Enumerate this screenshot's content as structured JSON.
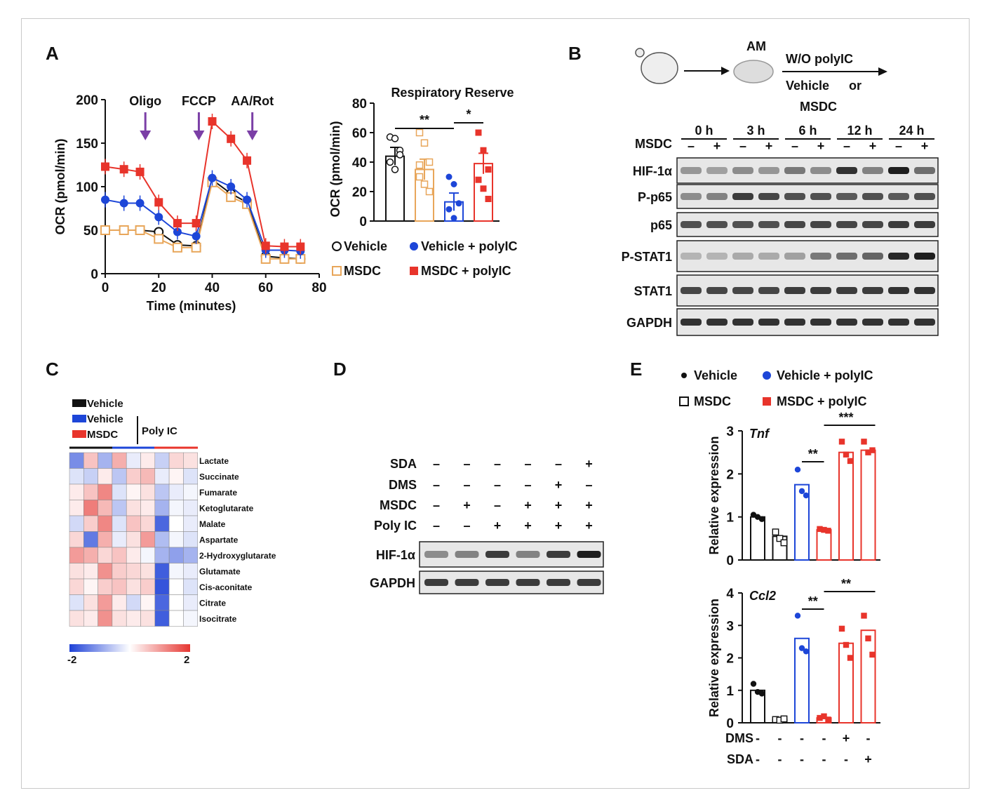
{
  "panels": {
    "A": "A",
    "B": "B",
    "C": "C",
    "D": "D",
    "E": "E"
  },
  "panelA": {
    "ocr_chart": {
      "chart_data": {
        "type": "line",
        "xlabel": "Time (minutes)",
        "ylabel": "OCR (pmol/min)",
        "xlim": [
          0,
          80
        ],
        "ylim": [
          0,
          200
        ],
        "xticks": [
          "0",
          "20",
          "40",
          "60",
          "80"
        ],
        "yticks": [
          "0",
          "50",
          "100",
          "150",
          "200"
        ],
        "injections": [
          {
            "label": "Oligo",
            "x": 15
          },
          {
            "label": "FCCP",
            "x": 35
          },
          {
            "label": "AA/Rot",
            "x": 55
          }
        ],
        "x": [
          0,
          7,
          13,
          20,
          27,
          34,
          40,
          47,
          53,
          60,
          67,
          73
        ],
        "series": [
          {
            "name": "Vehicle",
            "color": "#111111",
            "marker": "open-circle",
            "values": [
              50,
              50,
              50,
              48,
              33,
              32,
              108,
              92,
              82,
              20,
              18,
              17
            ]
          },
          {
            "name": "MSDC",
            "color": "#e8a65a",
            "marker": "open-square",
            "values": [
              50,
              50,
              50,
              40,
              30,
              30,
              105,
              88,
              80,
              17,
              17,
              17
            ]
          },
          {
            "name": "Vehicle + polyIC",
            "color": "#1d46d8",
            "marker": "filled-circle",
            "values": [
              85,
              81,
              81,
              65,
              48,
              43,
              110,
              100,
              85,
              27,
              27,
              26
            ]
          },
          {
            "name": "MSDC + polyIC",
            "color": "#e8342b",
            "marker": "filled-square",
            "values": [
              123,
              120,
              117,
              82,
              58,
              58,
              175,
              155,
              130,
              32,
              31,
              31
            ]
          }
        ]
      }
    },
    "reserve_chart": {
      "chart_data": {
        "type": "bar",
        "title": "Respiratory Reserve",
        "ylabel": "OCR (pmol/min)",
        "ylim": [
          0,
          80
        ],
        "yticks": [
          "0",
          "20",
          "40",
          "60",
          "80"
        ],
        "categories": [
          "Vehicle",
          "MSDC",
          "Vehicle + polyIC",
          "MSDC + polyIC"
        ],
        "values": [
          44,
          35,
          13,
          39
        ],
        "errors": [
          6,
          7,
          6,
          7
        ],
        "points": [
          [
            57,
            56,
            48,
            40,
            35,
            45
          ],
          [
            60,
            53,
            40,
            30,
            25,
            20,
            38
          ],
          [
            30,
            25,
            12,
            8,
            2
          ],
          [
            60,
            48,
            35,
            28,
            22,
            15
          ]
        ],
        "colors": [
          "#111111",
          "#e8a65a",
          "#1d46d8",
          "#e8342b"
        ],
        "significance": [
          {
            "label": "**",
            "from": 0,
            "to": 2
          },
          {
            "label": "*",
            "from": 2,
            "to": 3
          }
        ]
      }
    },
    "legend": [
      "Vehicle",
      "Vehicle + polyIC",
      "MSDC",
      "MSDC + polyIC"
    ]
  },
  "panelB": {
    "schema": {
      "cell": "AM",
      "condition": "W/O polyIC",
      "treat1": "Vehicle",
      "treat_or": "or",
      "treat2": "MSDC"
    },
    "timepoints": [
      "0 h",
      "3 h",
      "6 h",
      "12 h",
      "24 h"
    ],
    "msdc_row_label": "MSDC",
    "msdc_signs": [
      "–",
      "+",
      "–",
      "+",
      "–",
      "+",
      "–",
      "+",
      "–",
      "+"
    ],
    "blots": [
      "HIF-1α",
      "P-p65",
      "p65",
      "P-STAT1",
      "STAT1",
      "GAPDH"
    ],
    "intensities": [
      [
        0.35,
        0.3,
        0.4,
        0.35,
        0.5,
        0.4,
        0.85,
        0.45,
        0.95,
        0.55
      ],
      [
        0.4,
        0.45,
        0.8,
        0.75,
        0.7,
        0.7,
        0.65,
        0.7,
        0.65,
        0.7
      ],
      [
        0.7,
        0.7,
        0.7,
        0.7,
        0.75,
        0.75,
        0.75,
        0.75,
        0.8,
        0.8
      ],
      [
        0.2,
        0.2,
        0.25,
        0.25,
        0.3,
        0.5,
        0.55,
        0.6,
        0.9,
        0.95
      ],
      [
        0.75,
        0.75,
        0.75,
        0.75,
        0.8,
        0.8,
        0.8,
        0.8,
        0.85,
        0.85
      ],
      [
        0.85,
        0.85,
        0.85,
        0.85,
        0.85,
        0.85,
        0.85,
        0.85,
        0.85,
        0.85
      ]
    ]
  },
  "panelC": {
    "legend": [
      "Vehicle",
      "Vehicle",
      "MSDC"
    ],
    "legend_colors": [
      "#111111",
      "#1d46d8",
      "#e8342b"
    ],
    "group_label": "Poly IC",
    "metabolites": [
      "Lactate",
      "Succinate",
      "Fumarate",
      "Ketoglutarate",
      "Malate",
      "Aspartate",
      "2-Hydroxyglutarate",
      "Glutamate",
      "Cis-aconitate",
      "Citrate",
      "Isocitrate"
    ],
    "highlight_color": "#d8262b",
    "heat": [
      [
        -1.2,
        0.6,
        -0.8,
        0.8,
        -0.2,
        0.2,
        -0.5,
        0.4,
        0.3
      ],
      [
        -0.3,
        -0.5,
        0.2,
        -0.6,
        0.5,
        0.7,
        -0.2,
        0.1,
        -0.3
      ],
      [
        0.2,
        0.6,
        1.2,
        -0.3,
        0.1,
        0.3,
        -0.6,
        -0.2,
        -0.1
      ],
      [
        0.2,
        1.3,
        0.7,
        -0.6,
        0.3,
        0.2,
        -0.8,
        -0.1,
        -0.2
      ],
      [
        -0.4,
        0.5,
        1.2,
        -0.3,
        0.6,
        0.4,
        -1.6,
        0.0,
        -0.2
      ],
      [
        0.4,
        -1.4,
        0.8,
        -0.2,
        0.3,
        1.0,
        -0.7,
        -0.1,
        -0.3
      ],
      [
        1.0,
        0.8,
        0.4,
        0.6,
        0.2,
        -0.1,
        -0.8,
        -1.0,
        -0.8
      ],
      [
        0.3,
        0.2,
        1.1,
        0.5,
        0.4,
        0.3,
        -1.7,
        -0.1,
        -0.2
      ],
      [
        0.4,
        0.1,
        0.5,
        0.6,
        0.3,
        0.5,
        -1.8,
        0.0,
        -0.3
      ],
      [
        -0.3,
        0.3,
        1.0,
        0.2,
        -0.4,
        0.1,
        -1.6,
        0.0,
        -0.2
      ],
      [
        0.3,
        0.2,
        1.1,
        0.3,
        0.2,
        0.3,
        -1.7,
        0.0,
        -0.1
      ]
    ],
    "scale": {
      "min": "-2",
      "max": "2"
    }
  },
  "panelD": {
    "rows": [
      {
        "label": "SDA",
        "signs": [
          "–",
          "–",
          "–",
          "–",
          "–",
          "+"
        ]
      },
      {
        "label": "DMS",
        "signs": [
          "–",
          "–",
          "–",
          "–",
          "+",
          "–"
        ]
      },
      {
        "label": "MSDC",
        "signs": [
          "–",
          "+",
          "–",
          "+",
          "+",
          "+"
        ]
      },
      {
        "label": "Poly IC",
        "signs": [
          "–",
          "–",
          "+",
          "+",
          "+",
          "+"
        ]
      }
    ],
    "blots": [
      "HIF-1α",
      "GAPDH"
    ],
    "intensities": [
      [
        0.4,
        0.45,
        0.8,
        0.45,
        0.8,
        0.95
      ],
      [
        0.8,
        0.8,
        0.8,
        0.8,
        0.8,
        0.8
      ]
    ]
  },
  "panelE": {
    "legend": [
      "Vehicle",
      "Vehicle + polyIC",
      "MSDC",
      "MSDC + polyIC"
    ],
    "colors": [
      "#111111",
      "#111111",
      "#1d46d8",
      "#e8342b",
      "#e8342b",
      "#e8342b"
    ],
    "charts": [
      {
        "chart_data": {
          "type": "bar",
          "title": "Tnf",
          "ylabel": "Relative expression",
          "ylim": [
            0,
            3
          ],
          "yticks": [
            "0",
            "1",
            "2",
            "3"
          ],
          "values": [
            1.0,
            0.55,
            1.75,
            0.7,
            2.5,
            2.55
          ],
          "points": [
            [
              1.05,
              1.0,
              0.95
            ],
            [
              0.65,
              0.5,
              0.4
            ],
            [
              2.1,
              1.6,
              1.5
            ],
            [
              0.72,
              0.7,
              0.68
            ],
            [
              2.75,
              2.45,
              2.3
            ],
            [
              2.75,
              2.5,
              2.55
            ]
          ],
          "significance": [
            {
              "label": "**",
              "from": 2,
              "to": 3
            },
            {
              "label": "***",
              "from": 3,
              "to": 5
            }
          ]
        }
      },
      {
        "chart_data": {
          "type": "bar",
          "title": "Ccl2",
          "ylabel": "Relative expression",
          "ylim": [
            0,
            4
          ],
          "yticks": [
            "0",
            "1",
            "2",
            "3",
            "4"
          ],
          "values": [
            1.0,
            0.1,
            2.6,
            0.15,
            2.45,
            2.85
          ],
          "points": [
            [
              1.2,
              0.95,
              0.9
            ],
            [
              0.1,
              0.08,
              0.12
            ],
            [
              3.3,
              2.3,
              2.2
            ],
            [
              0.15,
              0.2,
              0.1
            ],
            [
              2.9,
              2.4,
              2.0
            ],
            [
              3.3,
              2.6,
              2.1
            ]
          ],
          "significance": [
            {
              "label": "**",
              "from": 2,
              "to": 3
            },
            {
              "label": "**",
              "from": 3,
              "to": 5
            }
          ]
        }
      }
    ],
    "treatments": [
      {
        "label": "DMS",
        "signs": [
          "-",
          "-",
          "-",
          "-",
          "+",
          "-"
        ]
      },
      {
        "label": "SDA",
        "signs": [
          "-",
          "-",
          "-",
          "-",
          "-",
          "+"
        ]
      }
    ]
  }
}
